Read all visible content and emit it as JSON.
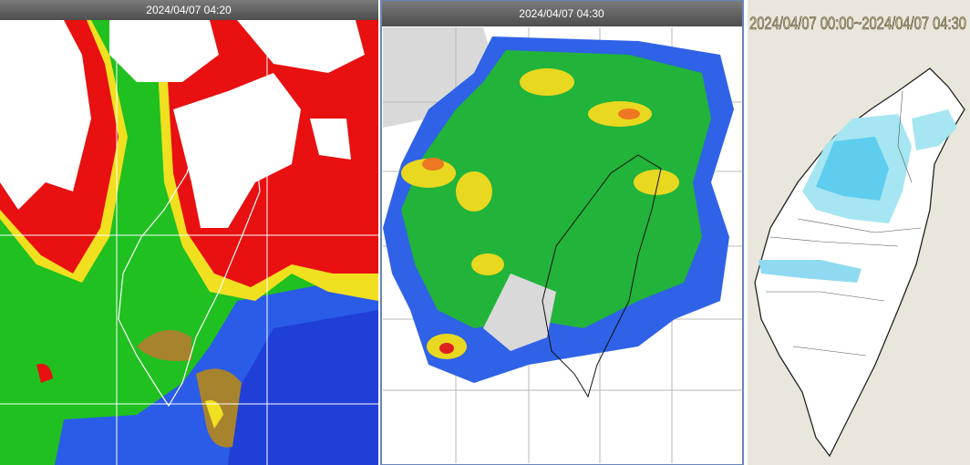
{
  "panels": [
    {
      "timestamp": "2024/04/07 04:20"
    },
    {
      "timestamp": "2024/04/07 04:30"
    },
    {
      "timestamp": "2024/04/07 00:00~2024/04/07 04:30"
    }
  ]
}
